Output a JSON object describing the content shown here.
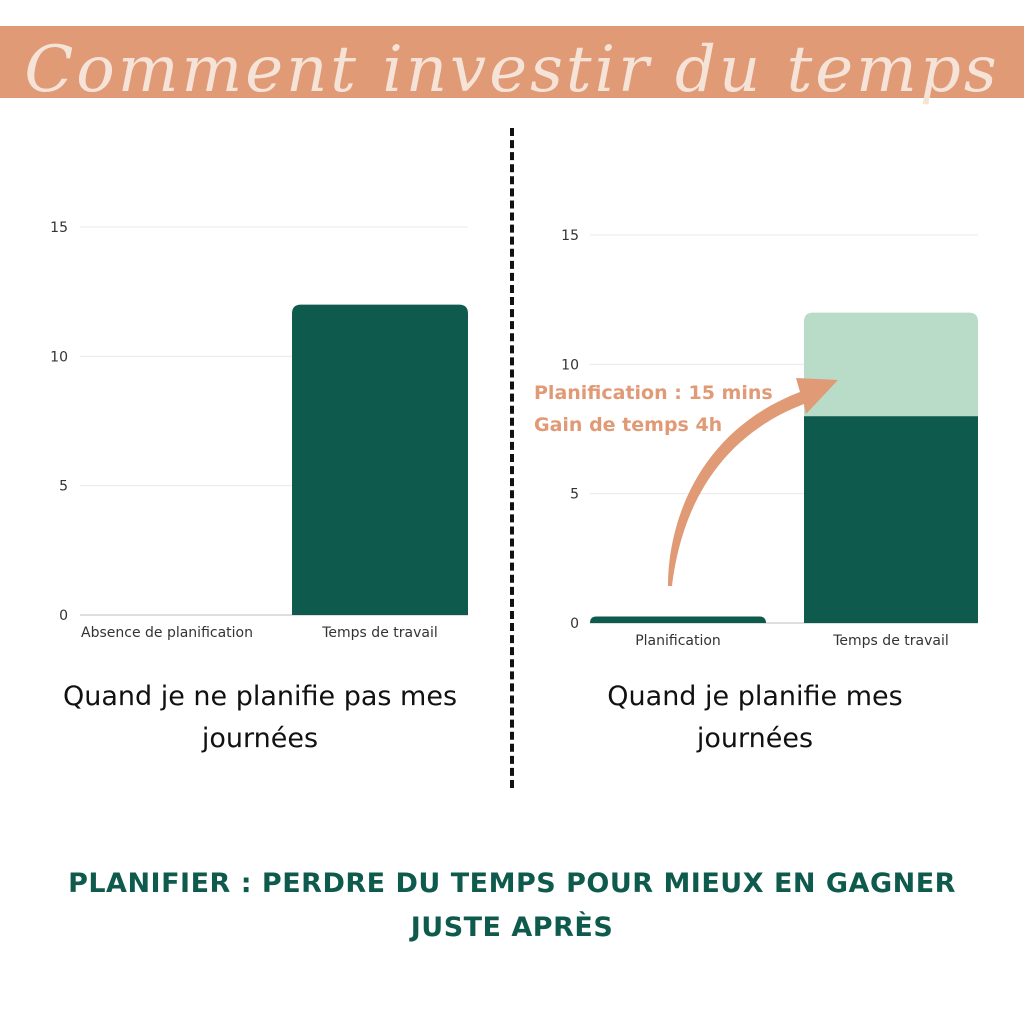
{
  "header": {
    "title": "Comment investir du temps"
  },
  "colors": {
    "banner": "#e09a76",
    "dark_green": "#0e5a4c",
    "light_green": "#b8dcc8",
    "accent": "#e09a76"
  },
  "annotation": {
    "line1": "Planification : 15 mins",
    "line2": "Gain de temps 4h"
  },
  "captions": {
    "left": "Quand je ne planifie pas mes journées",
    "right": "Quand je planifie mes journées"
  },
  "conclusion": "PLANIFIER : PERDRE DU TEMPS POUR MIEUX EN GAGNER JUSTE APRÈS",
  "chart_data": [
    {
      "type": "bar",
      "categories": [
        "Absence de planification",
        "Temps de travail"
      ],
      "series": [
        {
          "values": [
            0,
            12
          ]
        }
      ],
      "yticks": [
        0,
        5,
        10,
        15
      ],
      "ylim": [
        0,
        15
      ],
      "grid": true
    },
    {
      "type": "bar",
      "stacked": true,
      "categories": [
        "Planification",
        "Temps de travail"
      ],
      "series": [
        {
          "values": [
            0.25,
            8
          ]
        },
        {
          "values": [
            0,
            4
          ]
        }
      ],
      "yticks": [
        0,
        5,
        10,
        15
      ],
      "ylim": [
        0,
        15
      ],
      "grid": true
    }
  ]
}
